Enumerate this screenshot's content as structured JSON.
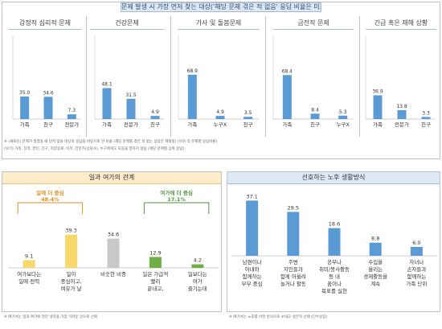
{
  "header": {
    "title": "문제 발생 시 가장 먼저 찾는 대상('해당 문제 겪은 적 없음' 응답 비율은 미표기)"
  },
  "colors": {
    "blue": "#5b9bd5",
    "yellow": "#f9d86b",
    "gray": "#c8c8c8",
    "green": "#70ad47",
    "orange_accent": "#e0901f",
    "green_accent": "#4f9a3a"
  },
  "chart_data": [
    {
      "type": "bar",
      "title": "감정적 심리적 문제",
      "categories": [
        "가족",
        "친구",
        "전문가"
      ],
      "values": [
        35.0,
        34.6,
        7.3
      ],
      "labels": [
        "35.0",
        "34.6",
        "7.3"
      ]
    },
    {
      "type": "bar",
      "title": "건강문제",
      "categories": [
        "가족",
        "전문가",
        "친구"
      ],
      "values": [
        48.1,
        31.5,
        4.9
      ],
      "labels": [
        "48.1",
        "31.5",
        "4.9"
      ]
    },
    {
      "type": "bar",
      "title": "가사 및 돌봄문제",
      "categories": [
        "가족",
        "누구X",
        "친구"
      ],
      "values": [
        68.9,
        4.9,
        3.5
      ],
      "labels": [
        "68.9",
        "4.9",
        "3.5"
      ]
    },
    {
      "type": "bar",
      "title": "금전적 문제",
      "categories": [
        "가족",
        "친구",
        "누구X"
      ],
      "values": [
        68.4,
        8.4,
        5.3
      ],
      "labels": [
        "68.4",
        "8.4",
        "5.3"
      ]
    },
    {
      "type": "bar",
      "title": "긴급 혹은 재해 상황",
      "categories": [
        "가족",
        "전문가",
        "친구"
      ],
      "values": [
        36.9,
        13.8,
        3.3
      ],
      "labels": [
        "36.9",
        "13.8",
        "3.3"
      ]
    },
    {
      "type": "bar",
      "title": "일과 여가의 관계",
      "categories": [
        "여가보다는 일에 전력",
        "일이 중심이고, 여유가 날 때 여가",
        "비슷한 비중",
        "일은 가급적 빨리 끝내고, 여가를 더",
        "일보다는 여가 즐기는데 전력"
      ],
      "values": [
        9.1,
        39.3,
        34.6,
        12.9,
        4.2
      ],
      "labels": [
        "9.1",
        "39.3",
        "34.6",
        "12.9",
        "4.2"
      ],
      "colors": [
        "#f9d86b",
        "#f9d86b",
        "#c8c8c8",
        "#70ad47",
        "#70ad47"
      ],
      "annotations": [
        {
          "text": "일에 더 중심",
          "value": "48.4%"
        },
        {
          "text": "여가에 더 중심",
          "value": "17.1%"
        }
      ]
    },
    {
      "type": "bar",
      "title": "선호하는 노후 생활방식",
      "categories": [
        "남편이나 아내와 함께하는 부부 중심",
        "주변 지인들과 함께 어울려 놀거나 활동",
        "공부나 취미/봉사활동 등 내 꿈이나 목표를 실현",
        "수입을 올리는 경제활동을 계속",
        "자녀나 손자들과 함께하는 가족 단위"
      ],
      "values": [
        37.1,
        29.5,
        18.6,
        8.8,
        6.0
      ],
      "labels": [
        "37.1",
        "29.5",
        "18.6",
        "8.8",
        "6.0"
      ]
    }
  ],
  "notes": {
    "top1": "※ (새로운) 문제가 생겼을 때 먼저 찾을 대상의 응답을 바탕으로 한 비율 (해당 문제를 겪은 적 없는 응답은 제외함) (이하 각 문제별 응답비율)",
    "top2": "(보기) 가족, 친척, 연인, 친구, 직장동료, 이웃, 전문가(상담사), 누구에게도 도움을 청하지 않음 (해당 문제별 상위 응답)",
    "bottom_left": "※ 여기서는 일과 여가에 관한 생각을 가장 가까운 것으로 선택",
    "bottom_right": "※ 여기서는 노후를 어떤 방식으로 보내고 싶은지 선택 (단수응답)"
  }
}
